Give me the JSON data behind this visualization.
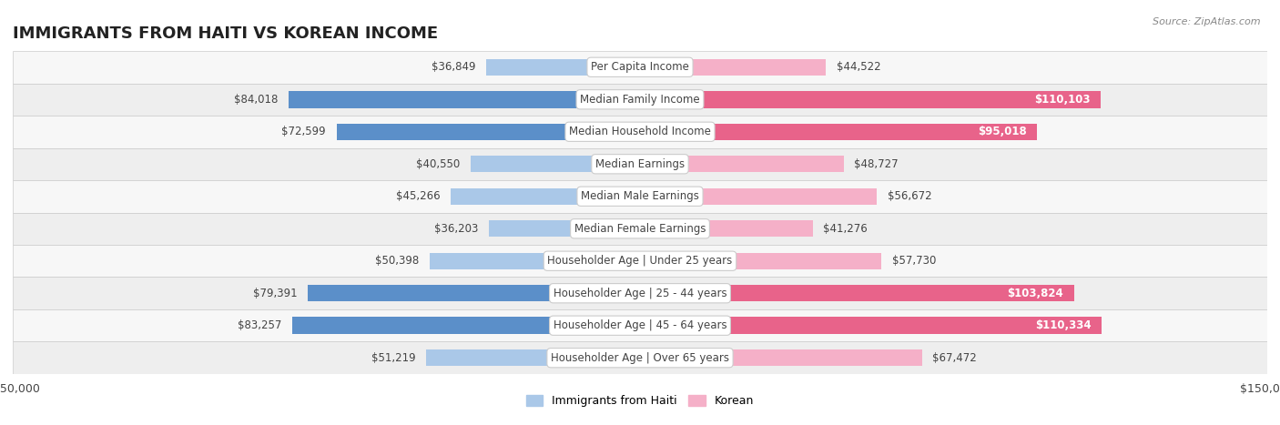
{
  "title": "IMMIGRANTS FROM HAITI VS KOREAN INCOME",
  "source": "Source: ZipAtlas.com",
  "categories": [
    "Per Capita Income",
    "Median Family Income",
    "Median Household Income",
    "Median Earnings",
    "Median Male Earnings",
    "Median Female Earnings",
    "Householder Age | Under 25 years",
    "Householder Age | 25 - 44 years",
    "Householder Age | 45 - 64 years",
    "Householder Age | Over 65 years"
  ],
  "haiti_values": [
    36849,
    84018,
    72599,
    40550,
    45266,
    36203,
    50398,
    79391,
    83257,
    51219
  ],
  "korean_values": [
    44522,
    110103,
    95018,
    48727,
    56672,
    41276,
    57730,
    103824,
    110334,
    67472
  ],
  "haiti_color_light": "#aac8e8",
  "haiti_color_dark": "#5b8fc9",
  "korean_color_light": "#f5b0c8",
  "korean_color_dark": "#e8638a",
  "bar_height": 0.52,
  "xlim": 150000,
  "row_colors": [
    "#f7f7f7",
    "#eeeeee"
  ],
  "row_border_color": "#cccccc",
  "label_box_color": "#ffffff",
  "label_box_border": "#cccccc",
  "title_fontsize": 13,
  "value_fontsize": 8.5,
  "cat_fontsize": 8.5,
  "tick_fontsize": 9,
  "legend_fontsize": 9,
  "source_fontsize": 8,
  "text_dark": "#444444",
  "text_white": "#ffffff"
}
